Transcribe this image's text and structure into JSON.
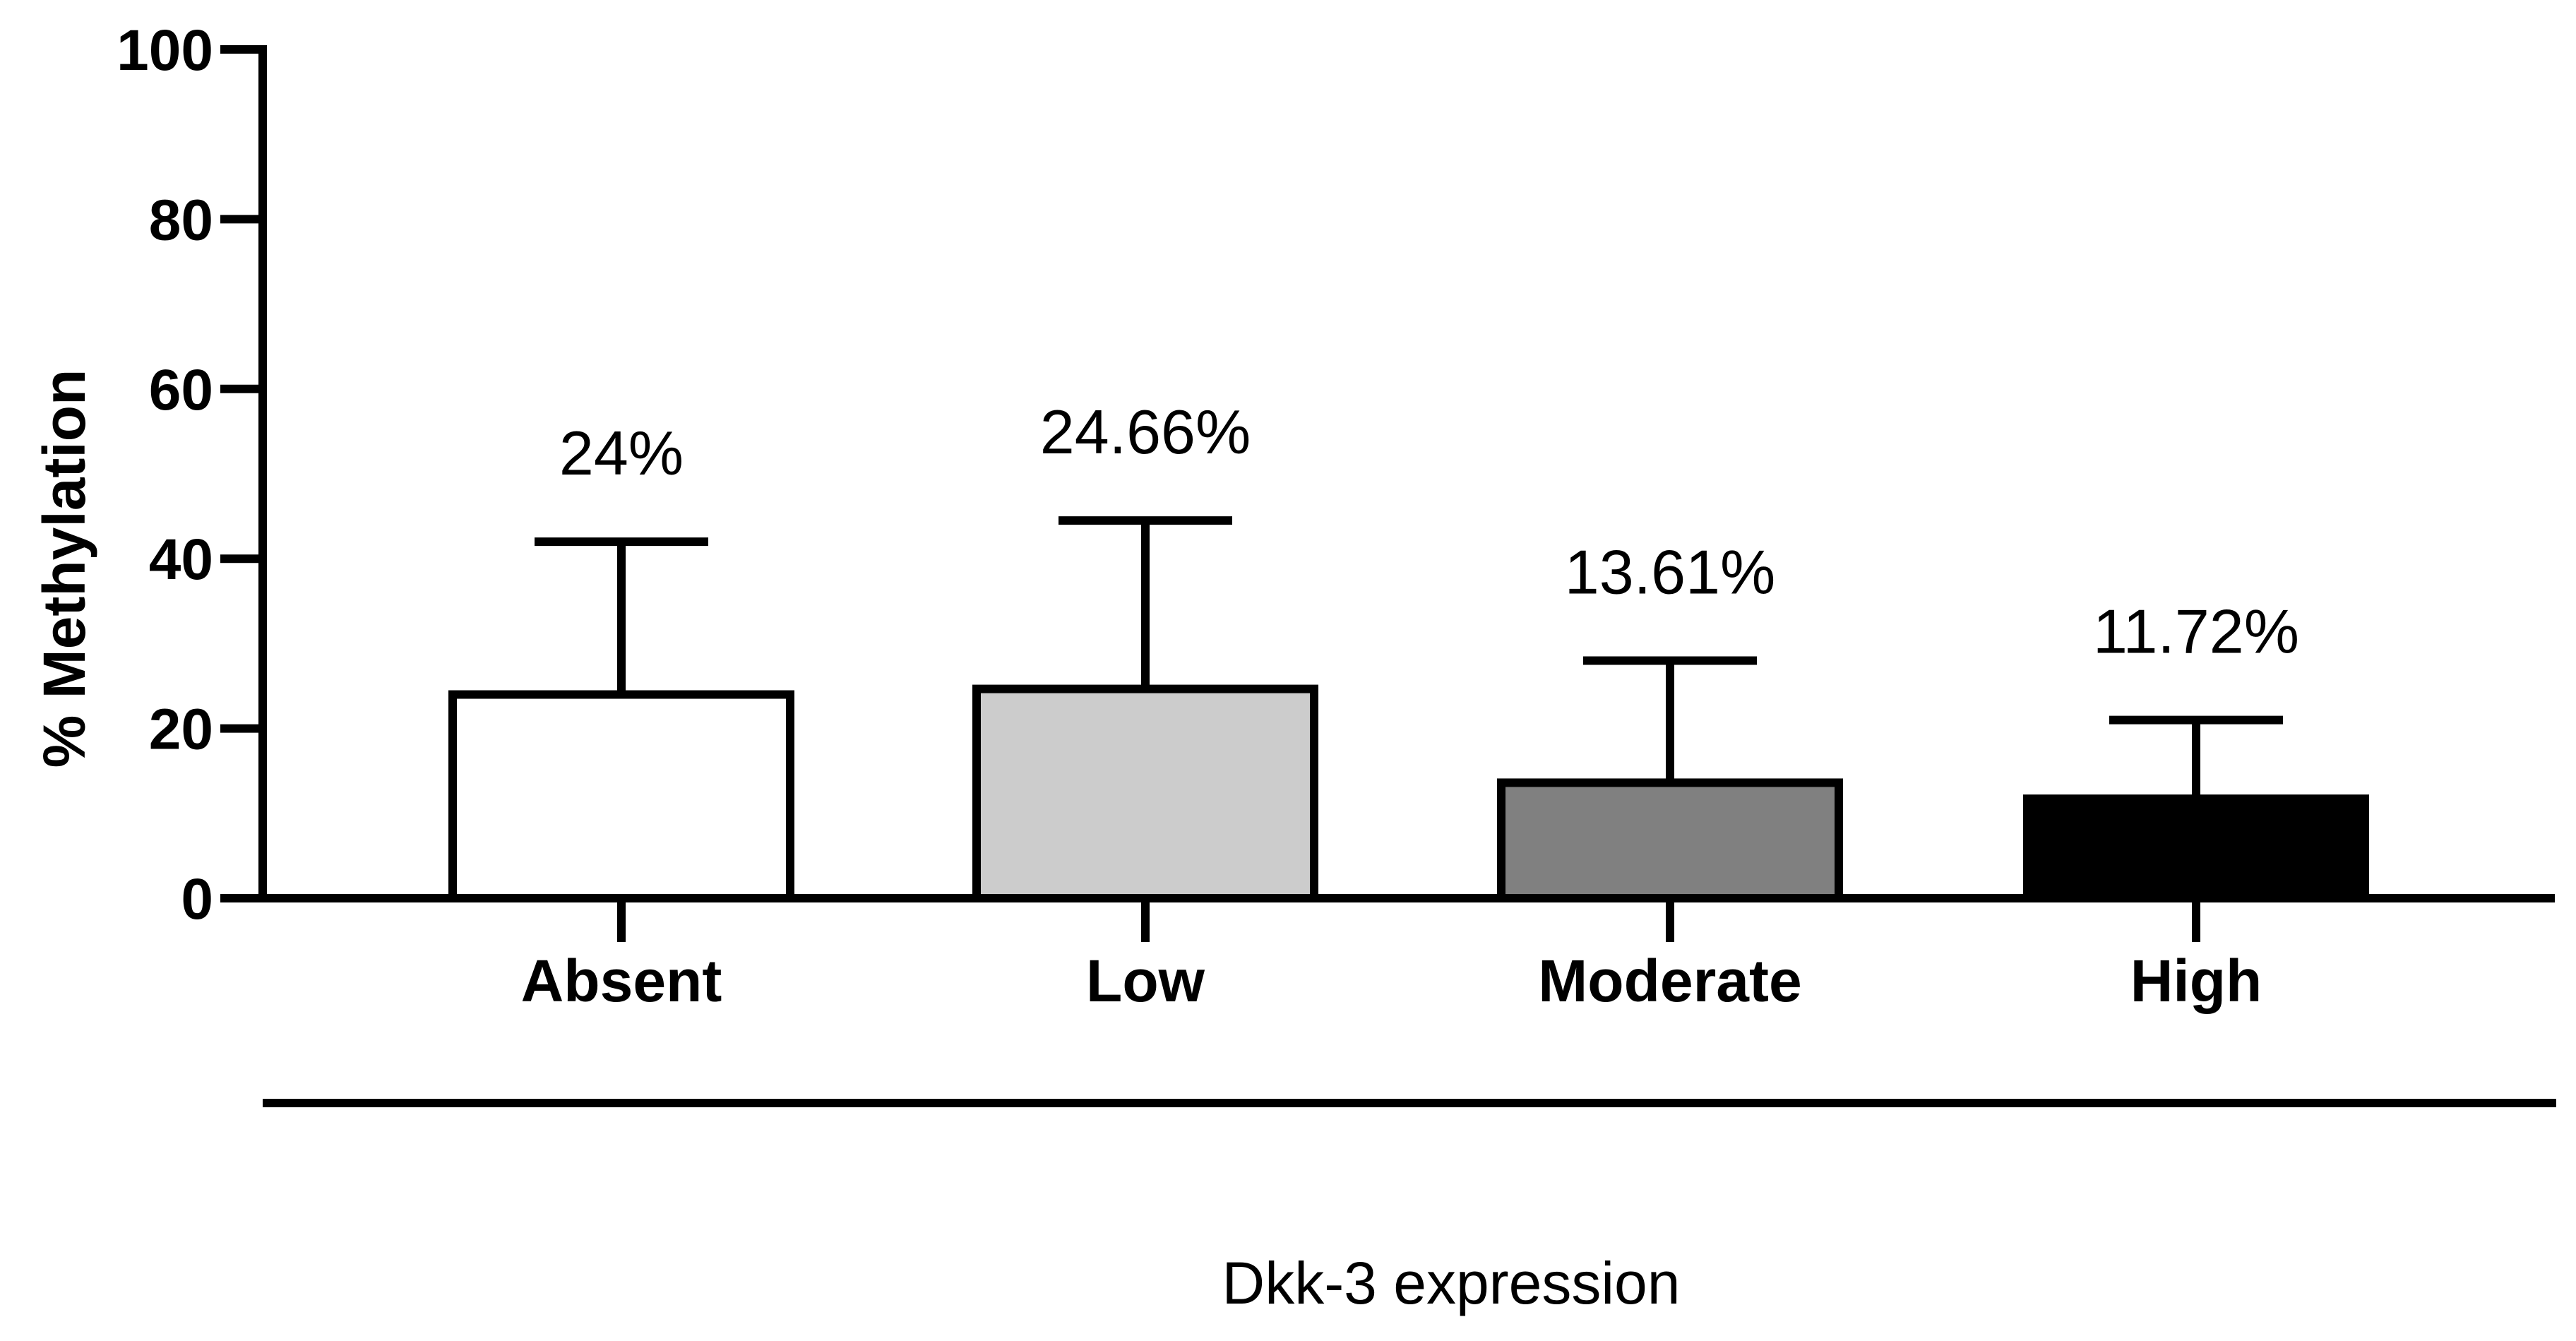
{
  "chart_data": {
    "type": "bar",
    "title": "",
    "xlabel": "Dkk-3 expression",
    "ylabel": "% Methylation",
    "ylim": [
      0,
      100
    ],
    "yticks": [
      0,
      20,
      40,
      60,
      80,
      100
    ],
    "ytick_labels": [
      "0",
      "20",
      "40",
      "60",
      "80",
      "100"
    ],
    "grid": false,
    "categories": [
      "Absent",
      "Low",
      "Moderate",
      "High"
    ],
    "values": [
      24,
      24.66,
      13.61,
      11.72
    ],
    "error_upper": [
      42,
      44.5,
      28,
      21
    ],
    "data_labels": [
      "24%",
      "24.66%",
      "13.61%",
      "11.72%"
    ],
    "bar_colors": [
      "#ffffff",
      "#cccccc",
      "#808080",
      "#000000"
    ],
    "edge_color": "#000000"
  }
}
